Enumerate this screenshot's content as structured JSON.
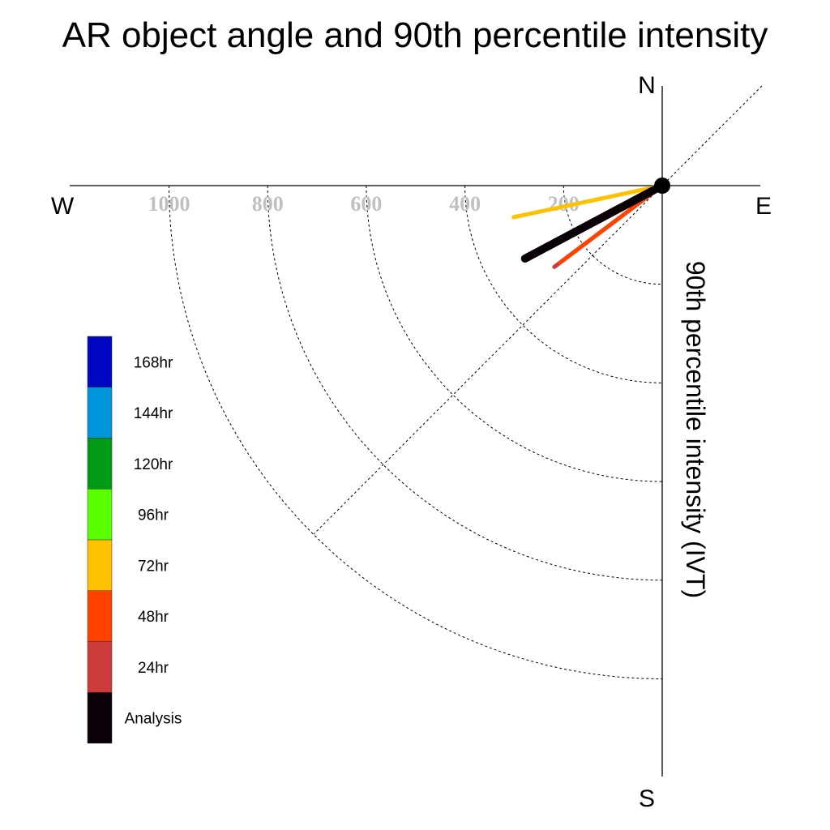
{
  "chart_data": {
    "type": "polar-vector",
    "title": "AR object angle and 90th percentile intensity",
    "ylabel": "90th percentile intensity (IVT)",
    "compass": {
      "north": "N",
      "south": "S",
      "east": "E",
      "west": "W"
    },
    "radial_ticks": [
      200,
      400,
      600,
      800,
      1000
    ],
    "radial_tick_labels": [
      "200",
      "400",
      "600",
      "800",
      "1000"
    ],
    "rmax": 1200,
    "grid": true,
    "legend": {
      "placement": "left",
      "entries": [
        {
          "label": "168hr",
          "color": "#0008c1"
        },
        {
          "label": "144hr",
          "color": "#0096dc"
        },
        {
          "label": "120hr",
          "color": "#009a17"
        },
        {
          "label": "96hr",
          "color": "#5aff00"
        },
        {
          "label": "72hr",
          "color": "#ffc200"
        },
        {
          "label": "48hr",
          "color": "#ff4200"
        },
        {
          "label": "24hr",
          "color": "#cc3c3c"
        },
        {
          "label": "Analysis",
          "color": "#0a0008"
        }
      ]
    },
    "series": [
      {
        "name": "72hr",
        "color": "#ffc200",
        "bearing_deg": 258,
        "intensity": 308
      },
      {
        "name": "24hr",
        "color": "#cc3c3c",
        "bearing_deg": 233,
        "intensity": 274
      },
      {
        "name": "48hr",
        "color": "#ff4200",
        "bearing_deg": 233,
        "intensity": 259
      },
      {
        "name": "Analysis",
        "color": "#0a0008",
        "bearing_deg": 242,
        "intensity": 315
      }
    ]
  }
}
